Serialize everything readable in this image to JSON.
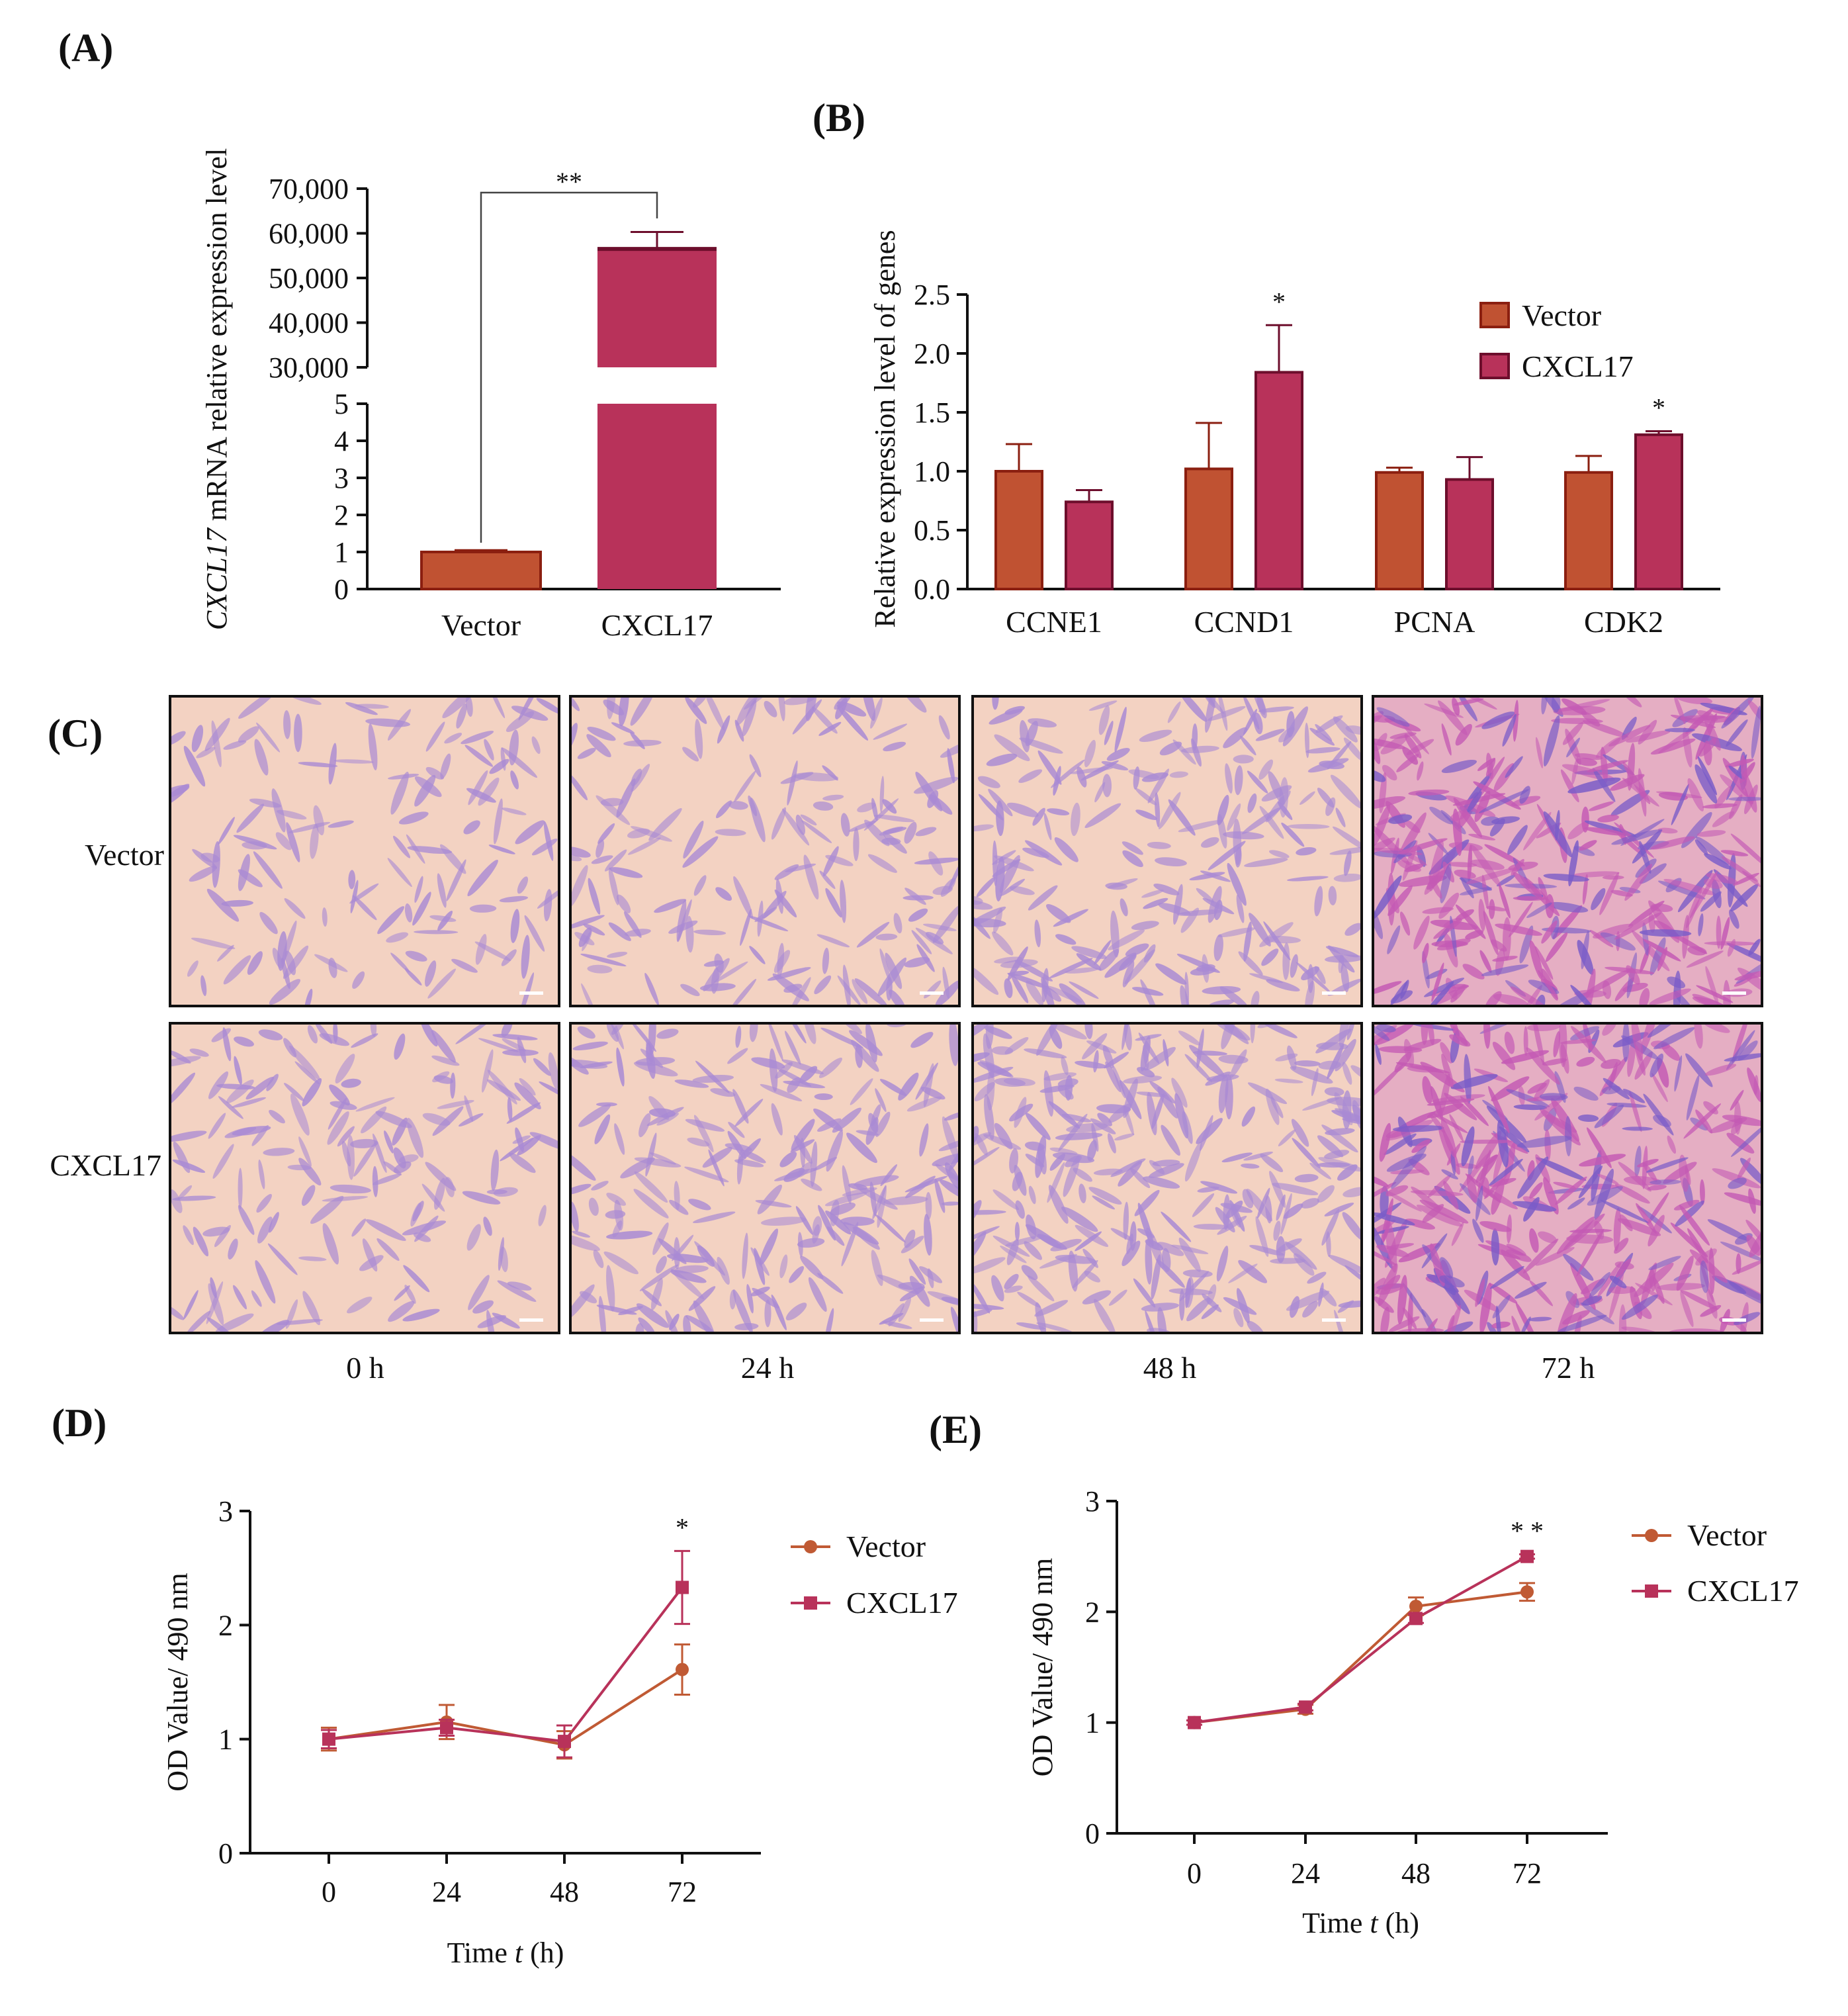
{
  "colors": {
    "vector_fill": "#c05232",
    "vector_stroke": "#8b1f10",
    "cxcl17_fill": "#b8325a",
    "cxcl17_stroke": "#6d0e2c",
    "line_vector": "#c05a34",
    "line_cxcl17": "#b8325a",
    "micro_background": "#f3d2c2",
    "micro_cell": "#a98ad4",
    "micro_cell_dense": "#c45ab4"
  },
  "panels": {
    "a": {
      "label": "(A)"
    },
    "b": {
      "label": "(B)"
    },
    "c": {
      "label": "(C)"
    },
    "d": {
      "label": "(D)"
    },
    "e": {
      "label": "(E)"
    }
  },
  "panel_c": {
    "rows": [
      "Vector",
      "CXCL17"
    ],
    "columns": [
      "0 h",
      "24 h",
      "48 h",
      "72 h"
    ],
    "cell_density": {
      "Vector": [
        0.25,
        0.4,
        0.55,
        1.0
      ],
      "CXCL17": [
        0.35,
        0.55,
        0.75,
        1.0
      ]
    }
  },
  "chart_data": [
    {
      "id": "A",
      "type": "bar",
      "ylabel_italic": "CXCL17",
      "ylabel_rest": " mRNA relative expression level",
      "categories": [
        "Vector",
        "CXCL17"
      ],
      "values": [
        1,
        56500
      ],
      "errors": [
        0.05,
        3800
      ],
      "broken_axis": {
        "lower_range": [
          0,
          5
        ],
        "lower_ticks": [
          "0",
          "1",
          "2",
          "3",
          "4",
          "5"
        ],
        "upper_range": [
          30000,
          70000
        ],
        "upper_ticks": [
          "30,000",
          "40,000",
          "50,000",
          "60,000",
          "70,000"
        ]
      },
      "significance": "**"
    },
    {
      "id": "B",
      "type": "bar",
      "ylabel": "Relative expression level of genes",
      "categories": [
        "CCNE1",
        "CCND1",
        "PCNA",
        "CDK2"
      ],
      "series": [
        {
          "name": "Vector",
          "values": [
            1.0,
            1.02,
            0.99,
            0.99
          ],
          "errors": [
            0.23,
            0.39,
            0.04,
            0.14
          ]
        },
        {
          "name": "CXCL17",
          "values": [
            0.74,
            1.84,
            0.93,
            1.31
          ],
          "errors": [
            0.1,
            0.4,
            0.19,
            0.03
          ]
        }
      ],
      "ylim": [
        0,
        2.5
      ],
      "yticks": [
        "0.0",
        "0.5",
        "1.0",
        "1.5",
        "2.0",
        "2.5"
      ],
      "significance": [
        "",
        "*",
        "",
        "*"
      ],
      "legend": "top-right"
    },
    {
      "id": "D",
      "type": "line",
      "ylabel": "OD Value/ 490 nm",
      "xlabel_main": "Time",
      "xlabel_var": "t",
      "xlabel_unit": " (h)",
      "x": [
        "0",
        "24",
        "48",
        "72"
      ],
      "series": [
        {
          "name": "Vector",
          "marker": "circle",
          "values": [
            1.0,
            1.15,
            0.95,
            1.61
          ],
          "errors": [
            0.1,
            0.15,
            0.12,
            0.22
          ]
        },
        {
          "name": "CXCL17",
          "marker": "square",
          "values": [
            1.0,
            1.1,
            0.98,
            2.33
          ],
          "errors": [
            0.08,
            0.07,
            0.14,
            0.32
          ]
        }
      ],
      "ylim": [
        0,
        3
      ],
      "yticks": [
        "0",
        "1",
        "2",
        "3"
      ],
      "significance": [
        "",
        "",
        "",
        "*"
      ],
      "legend": "right"
    },
    {
      "id": "E",
      "type": "line",
      "ylabel": "OD Value/ 490 nm",
      "xlabel_main": "Time",
      "xlabel_var": "t",
      "xlabel_unit": " (h)",
      "x": [
        "0",
        "24",
        "48",
        "72"
      ],
      "series": [
        {
          "name": "Vector",
          "marker": "circle",
          "values": [
            1.0,
            1.12,
            2.05,
            2.18
          ],
          "errors": [
            0.02,
            0.04,
            0.08,
            0.08
          ]
        },
        {
          "name": "CXCL17",
          "marker": "square",
          "values": [
            1.0,
            1.14,
            1.94,
            2.5
          ],
          "errors": [
            0.02,
            0.03,
            0.04,
            0.02
          ]
        }
      ],
      "ylim": [
        0,
        3
      ],
      "yticks": [
        "0",
        "1",
        "2",
        "3"
      ],
      "significance": [
        "",
        "",
        "",
        "* *"
      ],
      "legend": "right"
    }
  ]
}
